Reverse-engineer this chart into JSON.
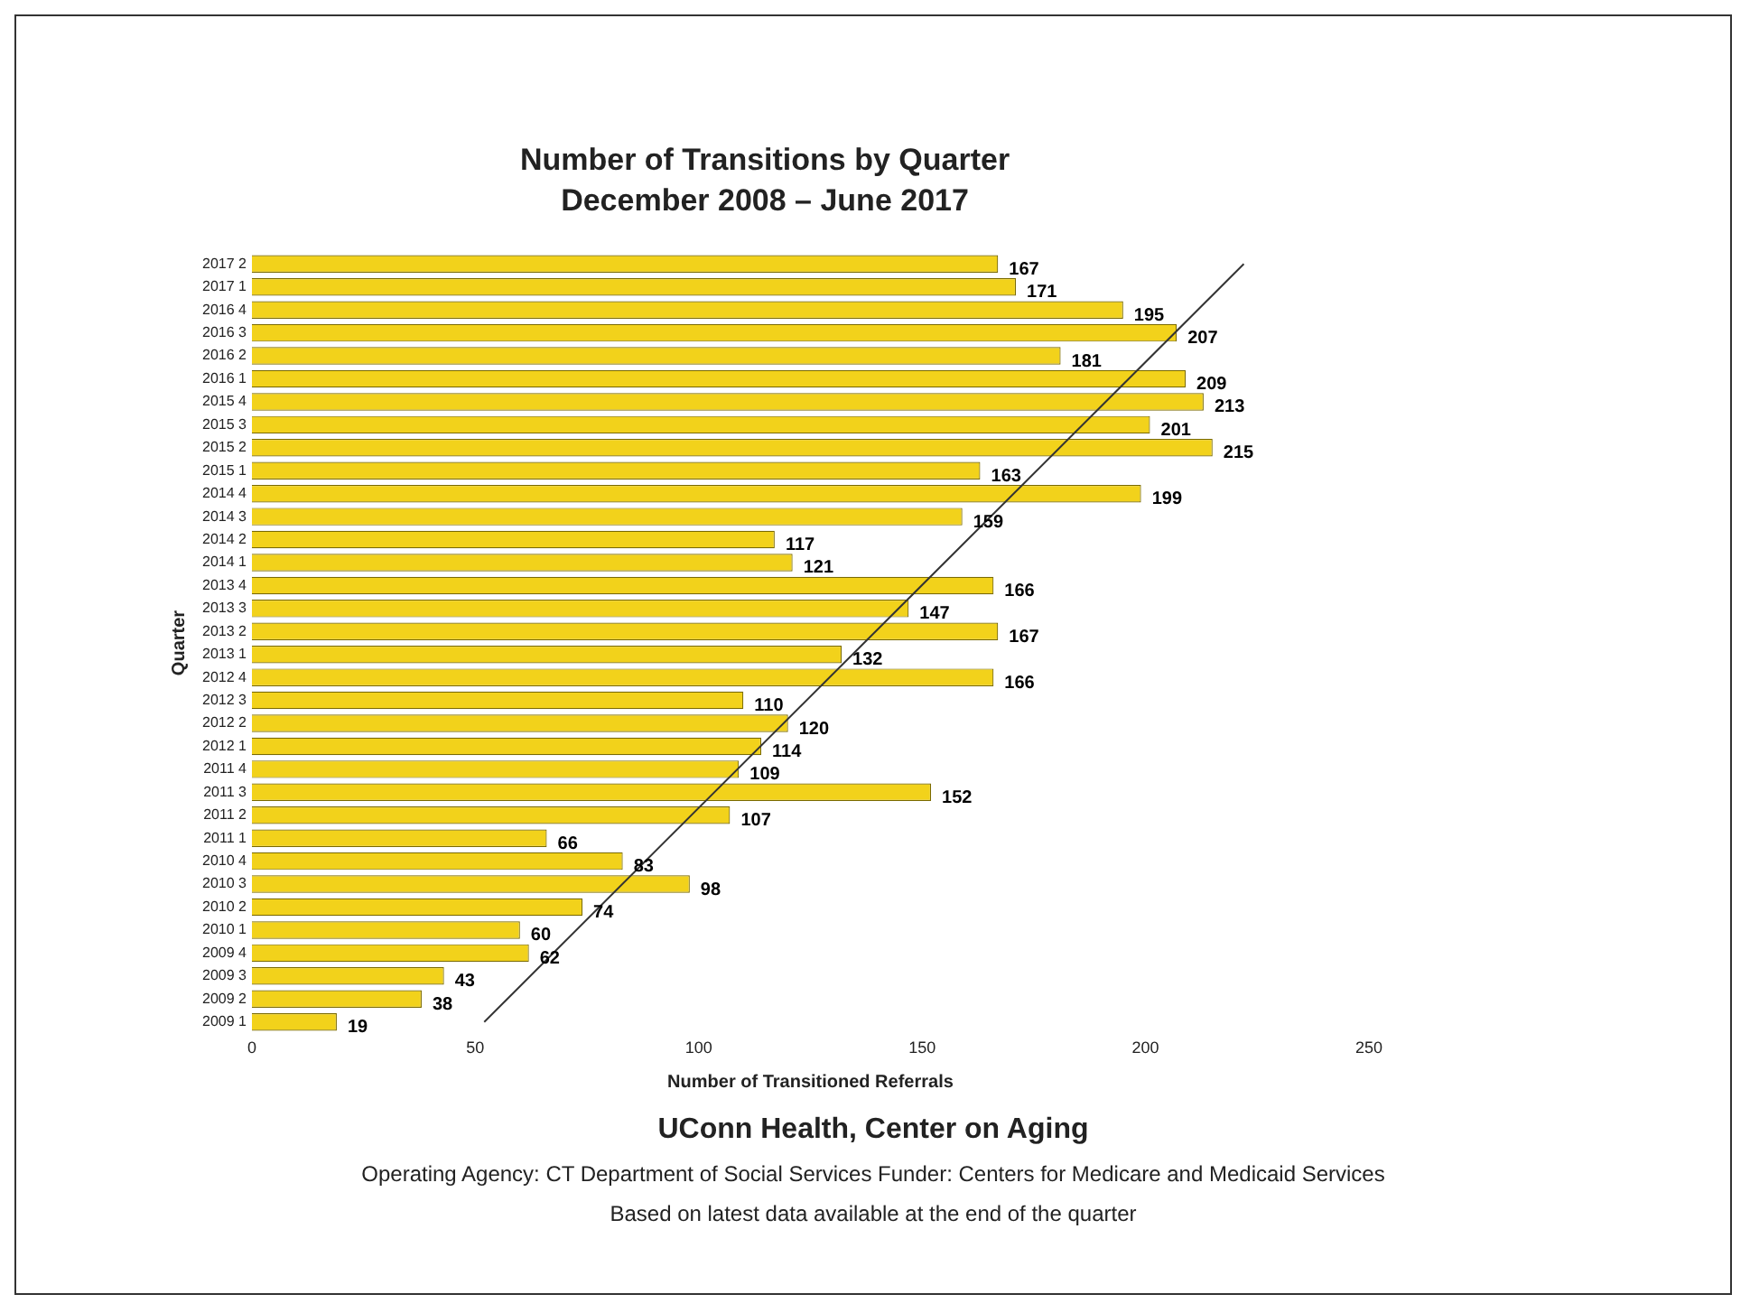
{
  "chart_data": {
    "type": "bar",
    "orientation": "horizontal",
    "title": "Number of Transitions by Quarter",
    "subtitle": "December 2008 – June 2017",
    "xlabel": "Number of Transitioned Referrals",
    "ylabel": "Quarter",
    "categories": [
      "2017 2",
      "2017 1",
      "2016 4",
      "2016 3",
      "2016 2",
      "2016 1",
      "2015 4",
      "2015 3",
      "2015 2",
      "2015 1",
      "2014 4",
      "2014 3",
      "2014 2",
      "2014 1",
      "2013 4",
      "2013 3",
      "2013 2",
      "2013 1",
      "2012 4",
      "2012 3",
      "2012 2",
      "2012 1",
      "2011 4",
      "2011 3",
      "2011 2",
      "2011 1",
      "2010 4",
      "2010 3",
      "2010 2",
      "2010 1",
      "2009 4",
      "2009 3",
      "2009 2",
      "2009 1"
    ],
    "series": [
      {
        "color": "#f2d21b",
        "values": [
          167,
          171,
          195,
          207,
          181,
          209,
          213,
          201,
          215,
          163,
          199,
          159,
          117,
          121,
          166,
          147,
          167,
          132,
          166,
          110,
          120,
          114,
          109,
          152,
          107,
          66,
          83,
          98,
          74,
          60,
          62,
          43,
          38,
          19
        ],
        "value_labels": [
          "167",
          "171",
          "195",
          "207",
          "181",
          "209",
          "213",
          "201",
          "215",
          "163",
          "199",
          "159",
          "117",
          "121",
          "166",
          "147",
          "167",
          "132",
          "166",
          "110",
          "120",
          "114",
          "109",
          "152",
          "107",
          "66",
          "83",
          "98",
          "74",
          "60",
          "62",
          "43",
          "38",
          "19"
        ]
      },
      {
        "type": "line",
        "color": "#333333",
        "values": [
          222,
          null,
          null,
          null,
          null,
          null,
          null,
          null,
          null,
          null,
          null,
          null,
          null,
          null,
          null,
          null,
          null,
          null,
          null,
          null,
          null,
          null,
          null,
          null,
          null,
          null,
          null,
          null,
          null,
          null,
          null,
          null,
          null,
          52
        ]
      }
    ],
    "xlim": [
      0,
      250
    ],
    "xticks": [
      0,
      50,
      100,
      150,
      200,
      250
    ],
    "grid": false,
    "legend": false,
    "annotations": [
      "UConn Health, Center on Aging",
      "Operating Agency: CT Department of Social Services Funder: Centers for Medicare and Medicaid Services",
      "Based on latest data available at the end of the quarter"
    ]
  }
}
